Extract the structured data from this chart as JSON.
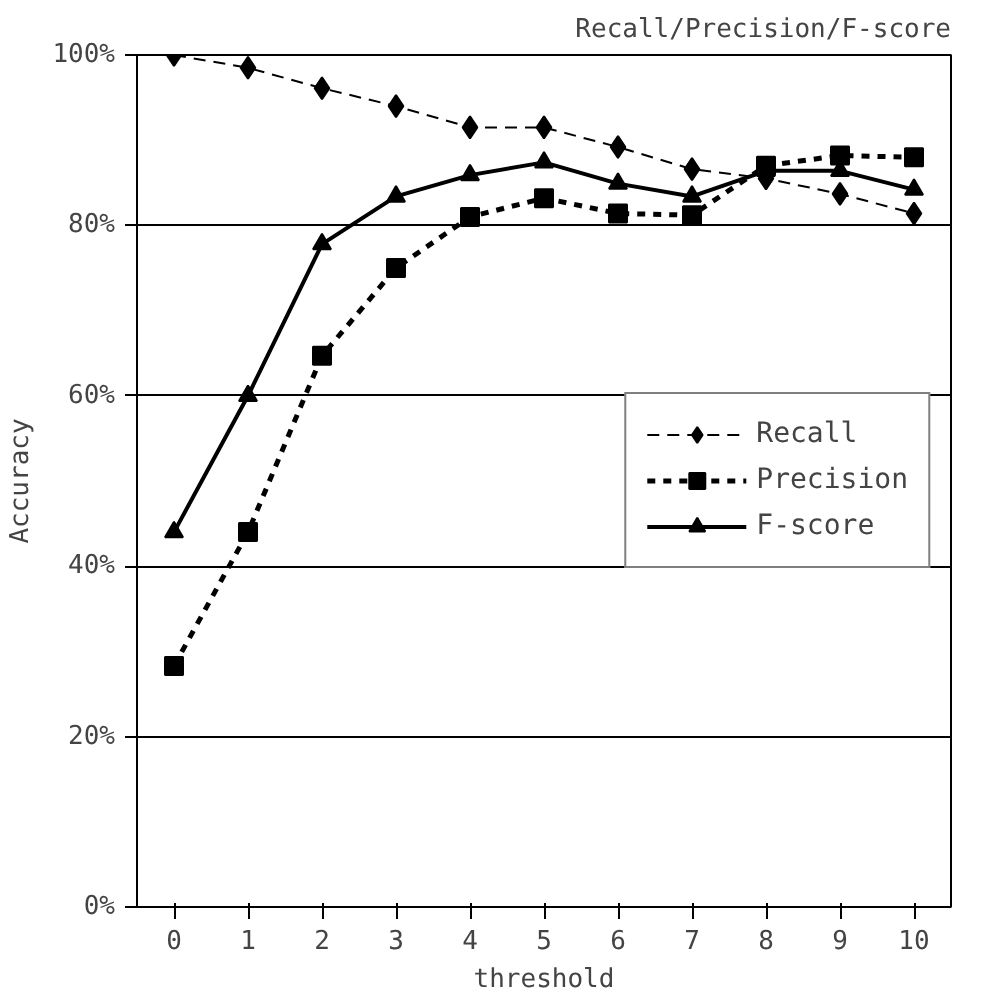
{
  "chart_data": {
    "type": "line",
    "title": "Recall/Precision/F-score",
    "xlabel": "threshold",
    "ylabel": "Accuracy",
    "x": [
      0,
      1,
      2,
      3,
      4,
      5,
      6,
      7,
      8,
      9,
      10
    ],
    "xlim": [
      -0.5,
      10.5
    ],
    "xticks": [
      0,
      1,
      2,
      3,
      4,
      5,
      6,
      7,
      8,
      9,
      10
    ],
    "ylim": [
      0,
      100
    ],
    "yticks": [
      {
        "value": 0,
        "label": "0%"
      },
      {
        "value": 20,
        "label": "20%"
      },
      {
        "value": 40,
        "label": "40%"
      },
      {
        "value": 60,
        "label": "60%"
      },
      {
        "value": 80,
        "label": "80%"
      },
      {
        "value": 100,
        "label": "100%"
      }
    ],
    "grid": "y",
    "legend": "right",
    "series": [
      {
        "name": "Recall",
        "color": "#000000",
        "marker": "diamond",
        "line_style": "dashed",
        "values": [
          100,
          98.5,
          96.1,
          94,
          91.5,
          91.5,
          89.2,
          86.6,
          85.5,
          83.7,
          81.4
        ]
      },
      {
        "name": "Precision",
        "color": "#000000",
        "marker": "square",
        "line_style": "dotted",
        "values": [
          28.3,
          44,
          64.7,
          75,
          81,
          83.2,
          81.4,
          81.2,
          87,
          88.2,
          88
        ]
      },
      {
        "name": "F-score",
        "color": "#000000",
        "marker": "triangle",
        "line_style": "solid",
        "values": [
          44,
          60,
          77.8,
          83.4,
          85.9,
          87.4,
          84.9,
          83.4,
          86.4,
          86.4,
          84.2
        ]
      }
    ]
  }
}
